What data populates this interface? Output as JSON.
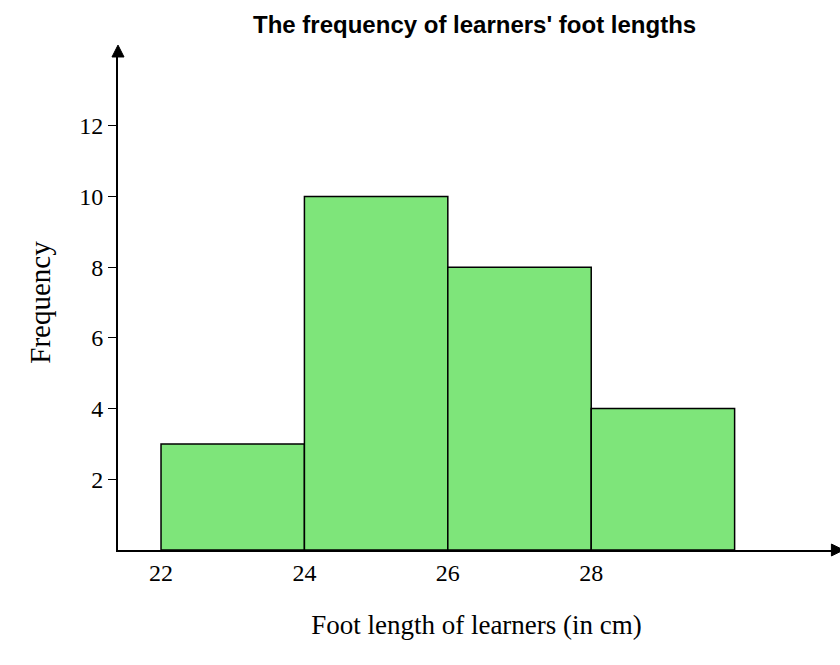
{
  "chart_data": {
    "type": "histogram",
    "title": "The frequency of learners' foot lengths",
    "x_label": "Foot length of learners (in cm)",
    "y_label": "Frequency",
    "bins": [
      22,
      24,
      26,
      28,
      30
    ],
    "values": [
      3,
      10,
      8,
      4
    ],
    "color": "#7ee57a",
    "xlim": [
      21.4,
      31.4
    ],
    "xticks": [
      22,
      24,
      26,
      28
    ],
    "ylim": [
      0,
      14
    ],
    "yticks": [
      2,
      4,
      6,
      8,
      10,
      12
    ],
    "grid": false
  }
}
